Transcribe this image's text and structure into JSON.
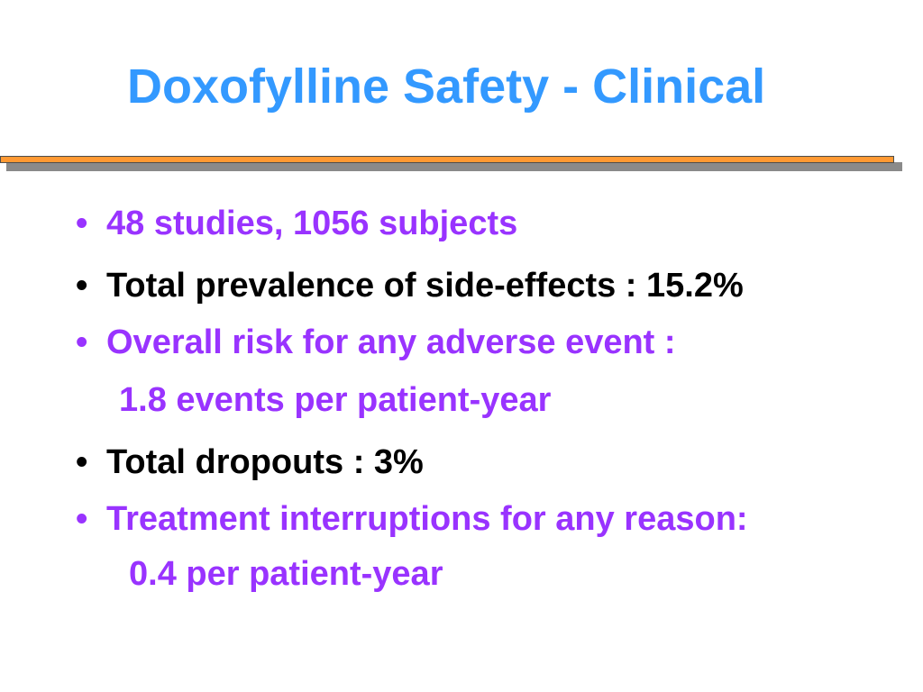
{
  "slide": {
    "title": "Doxofylline Safety - Clinical",
    "bullet_glyph": "•",
    "items": [
      {
        "text": "48 studies, 1056 subjects"
      },
      {
        "text": "Total prevalence of side-effects : 15.2%"
      },
      {
        "text": "Overall risk for any adverse event :",
        "continuation": "1.8 events per patient-year"
      },
      {
        "text": "Total dropouts : 3%"
      },
      {
        "text": "Treatment interruptions for any reason:",
        "continuation": "0.4 per patient-year"
      }
    ]
  },
  "colors": {
    "title": "#3399ff",
    "accent_text": "#9933ff",
    "body_text": "#000000",
    "rule": "#ff9933",
    "rule_shadow": "#8a8a8a"
  }
}
